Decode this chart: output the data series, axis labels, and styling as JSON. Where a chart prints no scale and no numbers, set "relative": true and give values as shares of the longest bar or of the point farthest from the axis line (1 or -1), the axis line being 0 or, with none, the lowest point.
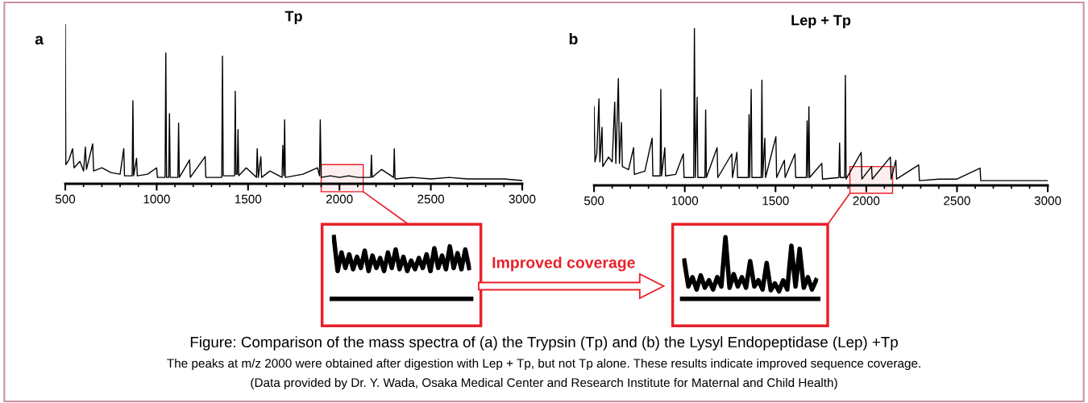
{
  "chart_data": [
    {
      "type": "line",
      "title": "Tp",
      "relative": true,
      "xlim": [
        500,
        3000
      ],
      "xticks": [
        500,
        1000,
        1500,
        2000,
        2500,
        3000
      ],
      "grid": false,
      "legend": false,
      "annotations": [
        "a",
        "Figure: Comparison of the mass spectra of (a) the Trypsin (Tp) and (b) the Lysyl Endopeptidase (Lep) +Tp",
        "The peaks at m/z 2000 were obtained after digestion with Lep + Tp, but not Tp alone. These results indicate improved sequence coverage.",
        "(Data provided by Dr. Y. Wada, Osaka Medical Center and Research Institute for Maternal and Child Health)"
      ],
      "bands": [
        {
          "axis": "x",
          "from": 1900,
          "to": 2130,
          "color": "#e8202a"
        }
      ],
      "series": [
        {
          "color": "#000000",
          "x": [
            500,
            503,
            520,
            540,
            548,
            580,
            600,
            610,
            616,
            650,
            655,
            700,
            750,
            800,
            820,
            824,
            866,
            870,
            874,
            890,
            894,
            950,
            1000,
            1004,
            1046,
            1050,
            1054,
            1066,
            1070,
            1074,
            1116,
            1120,
            1124,
            1180,
            1184,
            1265,
            1269,
            1356,
            1360,
            1364,
            1426,
            1430,
            1434,
            1441,
            1445,
            1449,
            1490,
            1546,
            1550,
            1556,
            1570,
            1574,
            1620,
            1686,
            1690,
            1696,
            1700,
            1704,
            1800,
            1880,
            1891,
            1895,
            1900,
            1950,
            2000,
            2050,
            2100,
            2171,
            2175,
            2179,
            2230,
            2296,
            2300,
            2304,
            2400,
            2500,
            2600,
            2700,
            2800,
            2900,
            3000
          ],
          "values": [
            1.0,
            0.12,
            0.15,
            0.22,
            0.1,
            0.14,
            0.08,
            0.23,
            0.09,
            0.25,
            0.08,
            0.1,
            0.07,
            0.06,
            0.22,
            0.05,
            0.05,
            0.52,
            0.05,
            0.16,
            0.05,
            0.06,
            0.1,
            0.04,
            0.04,
            0.82,
            0.04,
            0.04,
            0.44,
            0.04,
            0.04,
            0.38,
            0.04,
            0.15,
            0.04,
            0.17,
            0.04,
            0.04,
            0.8,
            0.05,
            0.05,
            0.58,
            0.06,
            0.06,
            0.34,
            0.05,
            0.1,
            0.04,
            0.22,
            0.04,
            0.17,
            0.04,
            0.08,
            0.04,
            0.24,
            0.05,
            0.4,
            0.04,
            0.06,
            0.1,
            0.05,
            0.4,
            0.04,
            0.05,
            0.04,
            0.05,
            0.04,
            0.04,
            0.18,
            0.04,
            0.09,
            0.04,
            0.22,
            0.03,
            0.04,
            0.03,
            0.04,
            0.03,
            0.03,
            0.03,
            0.02
          ]
        }
      ]
    },
    {
      "type": "line",
      "title": "Lep + Tp",
      "relative": true,
      "xlim": [
        500,
        3000
      ],
      "xticks": [
        500,
        1000,
        1500,
        2000,
        2500,
        3000
      ],
      "grid": false,
      "legend": false,
      "annotations": [
        "b"
      ],
      "bands": [
        {
          "axis": "x",
          "from": 1910,
          "to": 2145,
          "color": "#e8202a"
        }
      ],
      "series": [
        {
          "color": "#000000",
          "x": [
            500,
            505,
            515,
            527,
            532,
            544,
            548,
            580,
            600,
            614,
            620,
            634,
            640,
            651,
            656,
            690,
            718,
            722,
            780,
            820,
            824,
            864,
            868,
            872,
            890,
            894,
            950,
            992,
            996,
            1049,
            1053,
            1058,
            1068,
            1072,
            1111,
            1115,
            1119,
            1178,
            1182,
            1259,
            1263,
            1287,
            1291,
            1350,
            1354,
            1358,
            1366,
            1370,
            1421,
            1425,
            1429,
            1441,
            1445,
            1502,
            1506,
            1549,
            1553,
            1607,
            1611,
            1670,
            1674,
            1679,
            1684,
            1688,
            1755,
            1759,
            1849,
            1853,
            1857,
            1881,
            1885,
            1889,
            1972,
            1976,
            2029,
            2033,
            2133,
            2137,
            2163,
            2167,
            2289,
            2293,
            2400,
            2500,
            2627,
            2631,
            2700,
            2800,
            2900,
            3000
          ],
          "values": [
            0.5,
            0.15,
            0.2,
            0.55,
            0.15,
            0.37,
            0.12,
            0.18,
            0.15,
            0.53,
            0.14,
            0.68,
            0.14,
            0.4,
            0.12,
            0.1,
            0.24,
            0.07,
            0.09,
            0.3,
            0.06,
            0.06,
            0.61,
            0.06,
            0.24,
            0.06,
            0.07,
            0.2,
            0.05,
            0.05,
            1.0,
            0.05,
            0.56,
            0.05,
            0.05,
            0.48,
            0.05,
            0.24,
            0.05,
            0.2,
            0.05,
            0.21,
            0.05,
            0.05,
            0.45,
            0.05,
            0.61,
            0.05,
            0.05,
            0.67,
            0.05,
            0.3,
            0.05,
            0.31,
            0.05,
            0.16,
            0.05,
            0.2,
            0.05,
            0.05,
            0.41,
            0.05,
            0.5,
            0.05,
            0.14,
            0.04,
            0.05,
            0.27,
            0.05,
            0.05,
            0.7,
            0.04,
            0.21,
            0.04,
            0.12,
            0.04,
            0.18,
            0.04,
            0.16,
            0.04,
            0.13,
            0.03,
            0.04,
            0.04,
            0.11,
            0.03,
            0.03,
            0.03,
            0.03,
            0.03
          ]
        }
      ]
    },
    {
      "type": "line",
      "relative": true,
      "grid": false,
      "legend": false,
      "categories": [
        null,
        null,
        null,
        null,
        null,
        null,
        null,
        null,
        null,
        null,
        null,
        null,
        null,
        null,
        null,
        null,
        null,
        null,
        null,
        null,
        null,
        null,
        null,
        null,
        null,
        null,
        null,
        null,
        null,
        null,
        null,
        null,
        null,
        null,
        null,
        null
      ],
      "series": [
        {
          "color": "#000000",
          "values": [
            1.0,
            0.45,
            0.75,
            0.5,
            0.72,
            0.48,
            0.68,
            0.5,
            0.78,
            0.45,
            0.7,
            0.5,
            0.66,
            0.45,
            0.75,
            0.5,
            0.8,
            0.48,
            0.68,
            0.45,
            0.62,
            0.48,
            0.66,
            0.5,
            0.72,
            0.45,
            0.82,
            0.5,
            0.7,
            0.48,
            0.85,
            0.5,
            0.74,
            0.48,
            0.8,
            0.5
          ]
        }
      ]
    },
    {
      "type": "line",
      "relative": true,
      "grid": false,
      "legend": false,
      "annotations": [
        "Improved coverage"
      ],
      "categories": [
        null,
        null,
        null,
        null,
        null,
        null,
        null,
        null,
        null,
        null,
        null,
        null,
        null,
        null,
        null,
        null,
        null,
        null,
        null,
        null,
        null,
        null,
        null,
        null,
        null,
        null,
        null,
        null,
        null,
        null,
        null,
        null,
        null
      ],
      "series": [
        {
          "color": "#000000",
          "values": [
            0.62,
            0.2,
            0.35,
            0.15,
            0.38,
            0.18,
            0.3,
            0.15,
            0.35,
            0.2,
            1.0,
            0.18,
            0.4,
            0.2,
            0.35,
            0.18,
            0.61,
            0.2,
            0.3,
            0.15,
            0.58,
            0.14,
            0.25,
            0.12,
            0.3,
            0.15,
            0.86,
            0.2,
            0.81,
            0.18,
            0.35,
            0.15,
            0.3
          ]
        }
      ]
    }
  ]
}
